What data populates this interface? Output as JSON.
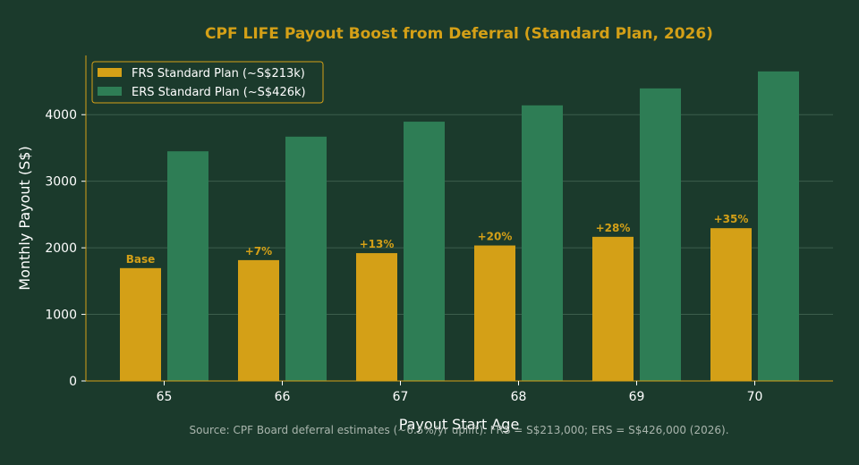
{
  "chart_data": {
    "type": "bar",
    "title": "CPF LIFE Payout Boost from Deferral (Standard Plan, 2026)",
    "xlabel": "Payout Start Age",
    "ylabel": "Monthly Payout (S$)",
    "categories": [
      "65",
      "66",
      "67",
      "68",
      "69",
      "70"
    ],
    "series": [
      {
        "name": "FRS Standard Plan (~S$213k)",
        "color": "#d4a017",
        "values": [
          1695,
          1815,
          1920,
          2035,
          2165,
          2295
        ],
        "labels": [
          "Base",
          "+7%",
          "+13%",
          "+20%",
          "+28%",
          "+35%"
        ]
      },
      {
        "name": "ERS Standard Plan (~S$426k)",
        "color": "#2e7d55",
        "values": [
          3450,
          3670,
          3895,
          4140,
          4395,
          4650
        ]
      }
    ],
    "ylim": [
      0,
      4890
    ],
    "yticks": [
      0,
      1000,
      2000,
      3000,
      4000
    ],
    "grid": "y",
    "legend_position": "top-left",
    "source": "Source: CPF Board deferral estimates (~6.5%/yr uplift). FRS = S$213,000; ERS = S$426,000 (2026)."
  },
  "colors": {
    "background": "#1b3a2c",
    "accent": "#d4a017",
    "grid": "#3d5e4c"
  }
}
